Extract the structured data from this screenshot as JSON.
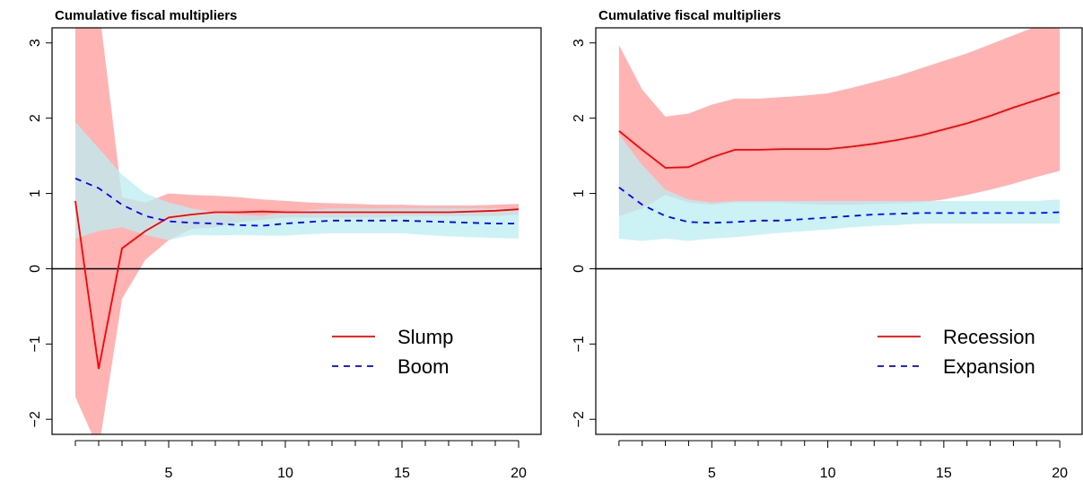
{
  "chart_data": [
    {
      "type": "line",
      "title": "Cumulative fiscal multipliers",
      "xlabel": "",
      "ylabel": "",
      "xlim": [
        0,
        21
      ],
      "ylim": [
        -2.2,
        3.2
      ],
      "x_ticks_major": [
        5,
        10,
        15,
        20
      ],
      "x_ticks_minor": [
        1,
        2,
        3,
        4,
        5,
        6,
        7,
        8,
        9,
        10,
        11,
        12,
        13,
        14,
        15,
        16,
        17,
        18,
        19,
        20
      ],
      "y_ticks": [
        -2,
        -1,
        0,
        1,
        2,
        3
      ],
      "hline": 0,
      "grid": false,
      "legend_position": "bottom-right",
      "x": [
        1,
        2,
        3,
        4,
        5,
        6,
        7,
        8,
        9,
        10,
        11,
        12,
        13,
        14,
        15,
        16,
        17,
        18,
        19,
        20
      ],
      "series": [
        {
          "name": "Slump",
          "color": "#ff0000",
          "linestyle": "solid",
          "values": [
            0.9,
            -1.33,
            0.27,
            0.5,
            0.68,
            0.72,
            0.75,
            0.75,
            0.76,
            0.75,
            0.75,
            0.75,
            0.75,
            0.75,
            0.75,
            0.75,
            0.75,
            0.76,
            0.77,
            0.79
          ],
          "band_color": "#ffb3b3",
          "band_lower": [
            -1.7,
            -2.4,
            -0.4,
            0.12,
            0.38,
            0.53,
            0.55,
            0.62,
            0.65,
            0.68,
            0.68,
            0.68,
            0.68,
            0.68,
            0.7,
            0.7,
            0.7,
            0.7,
            0.7,
            0.72
          ],
          "band_upper": [
            3.5,
            3.5,
            0.95,
            0.88,
            1.0,
            0.98,
            0.97,
            0.95,
            0.92,
            0.9,
            0.88,
            0.87,
            0.86,
            0.85,
            0.85,
            0.84,
            0.84,
            0.84,
            0.85,
            0.86
          ]
        },
        {
          "name": "Boom",
          "color": "#0000ff",
          "linestyle": "dashed",
          "values": [
            1.2,
            1.07,
            0.85,
            0.7,
            0.63,
            0.61,
            0.6,
            0.58,
            0.57,
            0.6,
            0.62,
            0.64,
            0.64,
            0.64,
            0.64,
            0.63,
            0.62,
            0.61,
            0.6,
            0.6
          ],
          "band_color": "#bbedf2",
          "band_lower": [
            0.4,
            0.5,
            0.55,
            0.45,
            0.38,
            0.45,
            0.44,
            0.45,
            0.44,
            0.44,
            0.46,
            0.47,
            0.47,
            0.47,
            0.47,
            0.45,
            0.43,
            0.42,
            0.41,
            0.4
          ],
          "band_upper": [
            1.95,
            1.6,
            1.25,
            1.0,
            0.88,
            0.8,
            0.75,
            0.72,
            0.7,
            0.75,
            0.78,
            0.8,
            0.8,
            0.8,
            0.8,
            0.8,
            0.8,
            0.8,
            0.8,
            0.8
          ]
        }
      ]
    },
    {
      "type": "line",
      "title": "Cumulative fiscal multipliers",
      "xlabel": "",
      "ylabel": "",
      "xlim": [
        0,
        21
      ],
      "ylim": [
        -2.2,
        3.2
      ],
      "x_ticks_major": [
        5,
        10,
        15,
        20
      ],
      "x_ticks_minor": [
        1,
        2,
        3,
        4,
        5,
        6,
        7,
        8,
        9,
        10,
        11,
        12,
        13,
        14,
        15,
        16,
        17,
        18,
        19,
        20
      ],
      "y_ticks": [
        -2,
        -1,
        0,
        1,
        2,
        3
      ],
      "hline": 0,
      "grid": false,
      "legend_position": "bottom-right",
      "x": [
        1,
        2,
        3,
        4,
        5,
        6,
        7,
        8,
        9,
        10,
        11,
        12,
        13,
        14,
        15,
        16,
        17,
        18,
        19,
        20
      ],
      "series": [
        {
          "name": "Recession",
          "color": "#ff0000",
          "linestyle": "solid",
          "values": [
            1.83,
            1.58,
            1.34,
            1.35,
            1.48,
            1.58,
            1.58,
            1.59,
            1.59,
            1.59,
            1.62,
            1.66,
            1.71,
            1.77,
            1.85,
            1.93,
            2.03,
            2.14,
            2.24,
            2.34
          ],
          "band_color": "#ffb3b3",
          "band_lower": [
            0.7,
            0.8,
            0.98,
            0.88,
            0.85,
            0.88,
            0.88,
            0.88,
            0.86,
            0.85,
            0.85,
            0.86,
            0.87,
            0.88,
            0.92,
            0.98,
            1.05,
            1.13,
            1.22,
            1.3
          ],
          "band_upper": [
            2.97,
            2.38,
            2.02,
            2.06,
            2.18,
            2.26,
            2.26,
            2.28,
            2.3,
            2.33,
            2.4,
            2.48,
            2.56,
            2.66,
            2.76,
            2.86,
            2.98,
            3.1,
            3.22,
            3.22
          ]
        },
        {
          "name": "Expansion",
          "color": "#0000ff",
          "linestyle": "dashed",
          "values": [
            1.08,
            0.85,
            0.7,
            0.62,
            0.61,
            0.62,
            0.64,
            0.64,
            0.66,
            0.68,
            0.7,
            0.72,
            0.73,
            0.74,
            0.74,
            0.74,
            0.74,
            0.74,
            0.74,
            0.75
          ],
          "band_color": "#bbedf2",
          "band_lower": [
            0.4,
            0.37,
            0.4,
            0.37,
            0.4,
            0.42,
            0.45,
            0.48,
            0.5,
            0.52,
            0.55,
            0.57,
            0.58,
            0.6,
            0.6,
            0.6,
            0.6,
            0.6,
            0.6,
            0.6
          ],
          "band_upper": [
            1.78,
            1.38,
            1.05,
            0.92,
            0.88,
            0.9,
            0.9,
            0.9,
            0.9,
            0.9,
            0.9,
            0.9,
            0.9,
            0.9,
            0.9,
            0.9,
            0.9,
            0.9,
            0.9,
            0.92
          ]
        }
      ]
    }
  ]
}
